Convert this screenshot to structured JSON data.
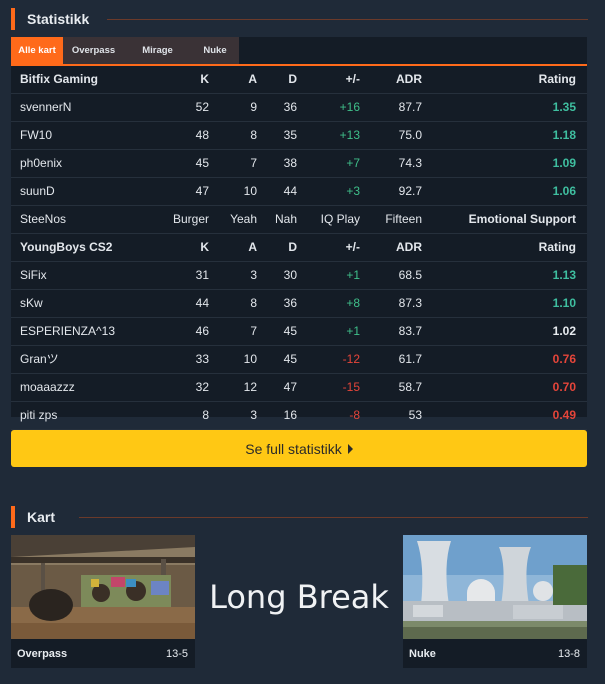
{
  "stats_section": {
    "title": "Statistikk"
  },
  "tabs": [
    "Alle kart",
    "Overpass",
    "Mirage",
    "Nuke"
  ],
  "team1": {
    "header": {
      "name": "Bitfix Gaming",
      "k": "K",
      "a": "A",
      "d": "D",
      "pm": "+/-",
      "adr": "ADR",
      "rating": "Rating"
    },
    "players": [
      {
        "name": "svennerN",
        "k": "52",
        "a": "9",
        "d": "36",
        "pm": "+16",
        "adr": "87.7",
        "rating": "1.35"
      },
      {
        "name": "FW10",
        "k": "48",
        "a": "8",
        "d": "35",
        "pm": "+13",
        "adr": "75.0",
        "rating": "1.18"
      },
      {
        "name": "ph0enix",
        "k": "45",
        "a": "7",
        "d": "38",
        "pm": "+7",
        "adr": "74.3",
        "rating": "1.09"
      },
      {
        "name": "suunD",
        "k": "47",
        "a": "10",
        "d": "44",
        "pm": "+3",
        "adr": "92.7",
        "rating": "1.06"
      }
    ]
  },
  "custom_row": {
    "name": "SteeNos",
    "k": "Burger",
    "a": "Yeah",
    "d": "Nah",
    "pm": "IQ Play",
    "adr": "Fifteen",
    "rating": "Emotional Support"
  },
  "team2": {
    "header": {
      "name": "YoungBoys CS2",
      "k": "K",
      "a": "A",
      "d": "D",
      "pm": "+/-",
      "adr": "ADR",
      "rating": "Rating"
    },
    "players": [
      {
        "name": "SiFix",
        "k": "31",
        "a": "3",
        "d": "30",
        "pm": "+1",
        "adr": "68.5",
        "rating": "1.13"
      },
      {
        "name": "sKw",
        "k": "44",
        "a": "8",
        "d": "36",
        "pm": "+8",
        "adr": "87.3",
        "rating": "1.10"
      },
      {
        "name": "ESPERIENZA^13",
        "k": "46",
        "a": "7",
        "d": "45",
        "pm": "+1",
        "adr": "83.7",
        "rating": "1.02"
      },
      {
        "name": "Granツ",
        "k": "33",
        "a": "10",
        "d": "45",
        "pm": "-12",
        "adr": "61.7",
        "rating": "0.76"
      },
      {
        "name": "moaaazzz",
        "k": "32",
        "a": "12",
        "d": "47",
        "pm": "-15",
        "adr": "58.7",
        "rating": "0.70"
      },
      {
        "name": "piti zps",
        "k": "8",
        "a": "3",
        "d": "16",
        "pm": "-8",
        "adr": "53",
        "rating": "0.49"
      }
    ]
  },
  "full_stats_button": "Se full statistikk",
  "maps_section": {
    "title": "Kart"
  },
  "maps": [
    {
      "name": "Overpass",
      "score": "13-5"
    },
    {
      "name": "Nuke",
      "score": "13-8"
    }
  ],
  "middle_text": "Long Break",
  "colors": {
    "accent": "#ff6a1a",
    "button": "#ffc814",
    "positive": "#3fbf8a",
    "negative": "#e5453a"
  }
}
